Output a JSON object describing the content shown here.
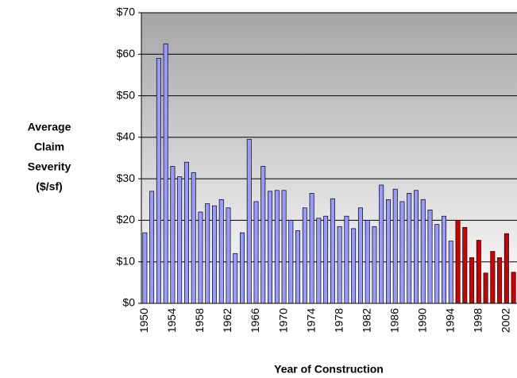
{
  "chart_data": {
    "type": "bar",
    "ylabel": [
      "Average",
      "Claim",
      "Severity",
      "($/sf)"
    ],
    "xlabel": "Year of Construction",
    "categories": [
      "1950",
      null,
      null,
      null,
      "1954",
      null,
      null,
      null,
      "1958",
      null,
      null,
      null,
      "1962",
      null,
      null,
      null,
      "1966",
      null,
      null,
      null,
      "1970",
      null,
      null,
      null,
      "1974",
      null,
      null,
      null,
      "1978",
      null,
      null,
      null,
      "1982",
      null,
      null,
      null,
      "1986",
      null,
      null,
      null,
      "1990",
      null,
      null,
      null,
      "1994",
      null,
      null,
      null,
      "1998",
      null,
      null,
      null,
      "2002",
      null
    ],
    "values": [
      17,
      27,
      59,
      62.5,
      33,
      30.5,
      34,
      31.5,
      22,
      24,
      23.5,
      25,
      23,
      12,
      17,
      39.5,
      24.5,
      33,
      27,
      27.2,
      27.2,
      20,
      17.5,
      23,
      26.5,
      20.5,
      21,
      25.2,
      18.5,
      21,
      18,
      23,
      20,
      18.5,
      28.5,
      25,
      27.5,
      24.5,
      26.5,
      27.2,
      25,
      22.5,
      19,
      21,
      15,
      20,
      18.3,
      11,
      15.2,
      7.3,
      12.5,
      11,
      16.8,
      7.5
    ],
    "colors": [
      "#9999ff",
      "#9999ff",
      "#9999ff",
      "#9999ff",
      "#9999ff",
      "#9999ff",
      "#9999ff",
      "#9999ff",
      "#9999ff",
      "#9999ff",
      "#9999ff",
      "#9999ff",
      "#9999ff",
      "#9999ff",
      "#9999ff",
      "#9999ff",
      "#9999ff",
      "#9999ff",
      "#9999ff",
      "#9999ff",
      "#9999ff",
      "#9999ff",
      "#9999ff",
      "#9999ff",
      "#9999ff",
      "#9999ff",
      "#9999ff",
      "#9999ff",
      "#9999ff",
      "#9999ff",
      "#9999ff",
      "#9999ff",
      "#9999ff",
      "#9999ff",
      "#9999ff",
      "#9999ff",
      "#9999ff",
      "#9999ff",
      "#9999ff",
      "#9999ff",
      "#9999ff",
      "#9999ff",
      "#9999ff",
      "#9999ff",
      "#9999ff",
      "#cc0000",
      "#cc0000",
      "#cc0000",
      "#cc0000",
      "#cc0000",
      "#cc0000",
      "#cc0000",
      "#cc0000",
      "#cc0000"
    ],
    "ylim": [
      0,
      70
    ],
    "yticks": [
      {
        "value": 0,
        "label": "$0"
      },
      {
        "value": 10,
        "label": "$10"
      },
      {
        "value": 20,
        "label": "$20"
      },
      {
        "value": 30,
        "label": "$30"
      },
      {
        "value": 40,
        "label": "$40"
      },
      {
        "value": 50,
        "label": "$50"
      },
      {
        "value": 60,
        "label": "$60"
      },
      {
        "value": 70,
        "label": "$70"
      }
    ],
    "grid": true
  }
}
